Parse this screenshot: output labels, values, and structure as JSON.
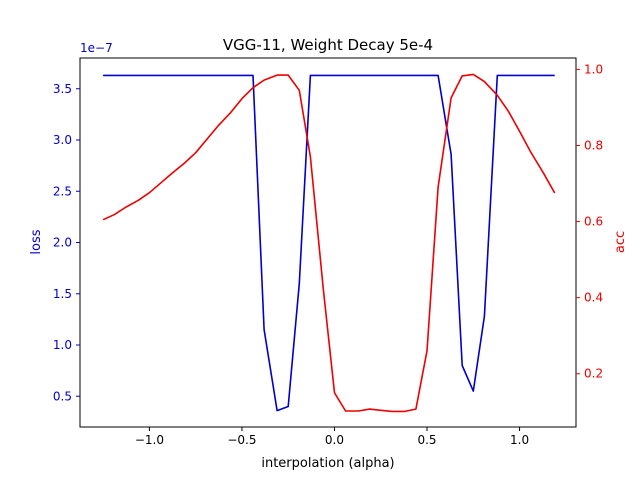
{
  "chart_data": {
    "type": "line",
    "title": "VGG-11, Weight Decay 5e-4",
    "xlabel": "interpolation (alpha)",
    "ylabel_left": "loss",
    "ylabel_right": "acc",
    "left_offset_label": "1e−7",
    "xlim": [
      -1.375,
      1.305
    ],
    "ylim_left": [
      0.2,
      3.8
    ],
    "ylim_right": [
      0.06,
      1.03
    ],
    "x_ticks": [
      -1.0,
      -0.5,
      0.0,
      0.5,
      1.0
    ],
    "x_tick_labels": [
      "−1.0",
      "−0.5",
      "0.0",
      "0.5",
      "1.0"
    ],
    "left_ticks": [
      0.5,
      1.0,
      1.5,
      2.0,
      2.5,
      3.0,
      3.5
    ],
    "left_tick_labels": [
      "0.5",
      "1.0",
      "1.5",
      "2.0",
      "2.5",
      "3.0",
      "3.5"
    ],
    "right_ticks": [
      0.2,
      0.4,
      0.6,
      0.8,
      1.0
    ],
    "right_tick_labels": [
      "0.2",
      "0.4",
      "0.6",
      "0.8",
      "1.0"
    ],
    "series": [
      {
        "name": "loss",
        "axis": "left",
        "color": "#0000cc",
        "x": [
          -1.25,
          -0.44,
          -0.38,
          -0.31,
          -0.25,
          -0.19,
          -0.13,
          0.56,
          0.63,
          0.69,
          0.75,
          0.81,
          0.88,
          1.19
        ],
        "y": [
          3.63,
          3.63,
          1.15,
          0.36,
          0.4,
          1.6,
          3.63,
          3.63,
          2.86,
          0.8,
          0.55,
          1.28,
          3.63,
          3.63
        ]
      },
      {
        "name": "acc",
        "axis": "right",
        "color": "#ee0000",
        "x": [
          -1.25,
          -1.19,
          -1.13,
          -1.06,
          -1.0,
          -0.94,
          -0.88,
          -0.81,
          -0.75,
          -0.69,
          -0.63,
          -0.56,
          -0.5,
          -0.44,
          -0.38,
          -0.31,
          -0.25,
          -0.19,
          -0.13,
          -0.06,
          0.0,
          0.06,
          0.13,
          0.19,
          0.25,
          0.31,
          0.38,
          0.44,
          0.5,
          0.56,
          0.63,
          0.69,
          0.75,
          0.81,
          0.88,
          0.94,
          1.0,
          1.06,
          1.13,
          1.19
        ],
        "y": [
          0.605,
          0.618,
          0.637,
          0.656,
          0.676,
          0.701,
          0.726,
          0.754,
          0.781,
          0.816,
          0.851,
          0.887,
          0.923,
          0.952,
          0.972,
          0.985,
          0.985,
          0.945,
          0.77,
          0.42,
          0.15,
          0.102,
          0.102,
          0.107,
          0.104,
          0.101,
          0.101,
          0.107,
          0.26,
          0.69,
          0.925,
          0.983,
          0.987,
          0.968,
          0.932,
          0.89,
          0.837,
          0.783,
          0.727,
          0.675
        ]
      }
    ]
  }
}
